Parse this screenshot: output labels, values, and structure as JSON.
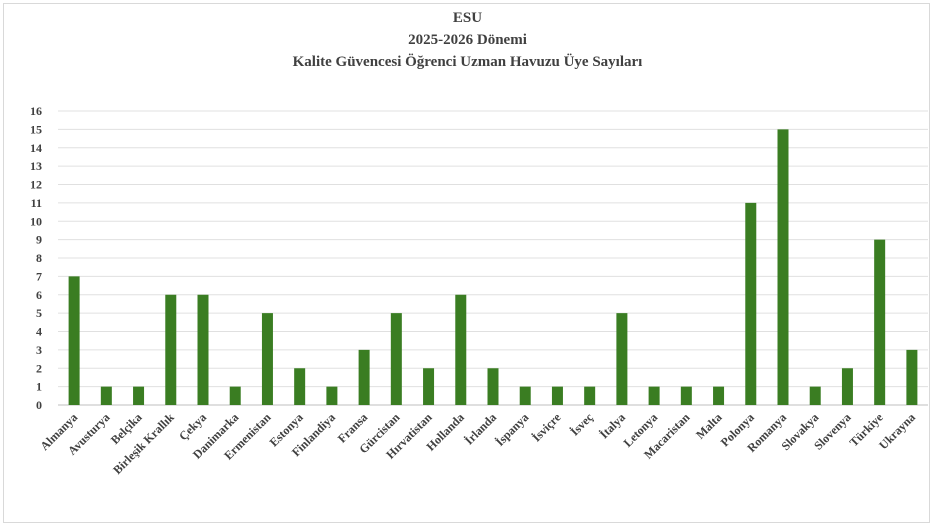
{
  "chart_data": {
    "type": "bar",
    "title_lines": [
      "ESU",
      "2025-2026 Dönemi",
      "Kalite Güvencesi Öğrenci Uzman Havuzu Üye Sayıları"
    ],
    "categories": [
      "Almanya",
      "Avusturya",
      "Belçika",
      "Birleşik Krallık",
      "Çekya",
      "Danimarka",
      "Ermenistan",
      "Estonya",
      "Finlandiya",
      "Fransa",
      "Gürcistan",
      "Hırvatistan",
      "Hollanda",
      "İrlanda",
      "İspanya",
      "İsviçre",
      "İsveç",
      "İtalya",
      "Letonya",
      "Macaristan",
      "Malta",
      "Polonya",
      "Romanya",
      "Slovakya",
      "Slovenya",
      "Türkiye",
      "Ukrayna"
    ],
    "values": [
      7,
      1,
      1,
      6,
      6,
      1,
      5,
      2,
      1,
      3,
      5,
      2,
      6,
      2,
      1,
      1,
      1,
      5,
      1,
      1,
      1,
      11,
      15,
      1,
      2,
      9,
      3
    ],
    "ylim": [
      0,
      16
    ],
    "yticks": [
      "0",
      "1",
      "2",
      "3",
      "4",
      "5",
      "6",
      "7",
      "8",
      "9",
      "10",
      "11",
      "12",
      "13",
      "14",
      "15",
      "16"
    ],
    "grid": true,
    "bar_color": "#3a7d22",
    "grid_color": "#e0e0e0"
  }
}
